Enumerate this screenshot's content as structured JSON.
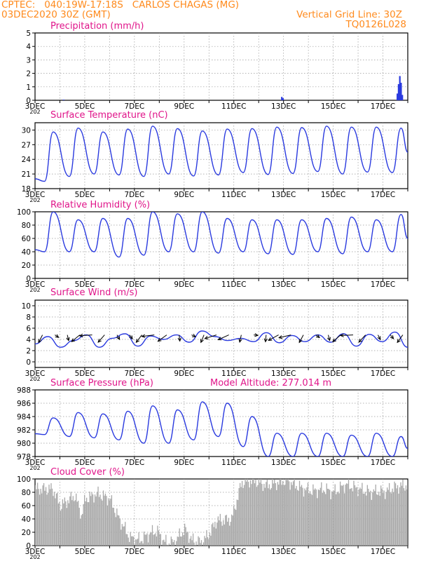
{
  "header": {
    "line1_left": "CPTEC:   040:19W-17:18S   CARLOS CHAGAS (MG)",
    "line2_left": "03DEC2020 30Z (GMT)",
    "line2_right": "Vertical Grid Line: 30Z",
    "line3_right": "TQ0126L028"
  },
  "colors": {
    "header": "#ff8a1c",
    "title": "#e0158a",
    "series": "#2a3adf",
    "cloud": "#a9a9a9"
  },
  "chart_data": [
    {
      "type": "bar",
      "title": "Precipitation (mm/h)",
      "x": [
        {
          "day": 4.12,
          "v": 0.05
        },
        {
          "day": 12.9,
          "v": 0.25
        },
        {
          "day": 12.95,
          "v": 0.15
        },
        {
          "day": 17.55,
          "v": 0.5
        },
        {
          "day": 17.6,
          "v": 1.2
        },
        {
          "day": 17.65,
          "v": 1.8
        },
        {
          "day": 17.7,
          "v": 1.3
        },
        {
          "day": 17.75,
          "v": 0.4
        }
      ],
      "ylim": [
        0,
        5
      ],
      "yticks": [
        "0",
        "1",
        "2",
        "3",
        "4",
        "5"
      ]
    },
    {
      "type": "line",
      "title": "Surface Temperature (nC)",
      "min": [
        19.5,
        20.5,
        21.0,
        20.8,
        20.5,
        21.0,
        20.6,
        20.8,
        21.3,
        20.9,
        21.1,
        21.5,
        21.0,
        21.4,
        21.3
      ],
      "max": [
        29.6,
        30.4,
        29.6,
        30.2,
        30.8,
        30.3,
        29.8,
        30.2,
        30.3,
        30.6,
        30.5,
        30.8,
        30.6,
        30.6,
        30.4,
        29.6
      ],
      "ylim": [
        18,
        31.5
      ],
      "yticks": [
        "18",
        "21",
        "24",
        "27",
        "30"
      ]
    },
    {
      "type": "line",
      "title": "Relative Humidity (%)",
      "min": [
        40,
        40,
        40,
        32,
        35,
        40,
        40,
        38,
        40,
        37,
        36,
        40,
        37,
        40,
        40
      ],
      "max": [
        100,
        88,
        90,
        90,
        100,
        97,
        100,
        90,
        88,
        88,
        88,
        90,
        92,
        88,
        96,
        80
      ],
      "ylim": [
        0,
        100
      ],
      "yticks": [
        "0",
        "20",
        "40",
        "60",
        "80",
        "100"
      ]
    },
    {
      "type": "line",
      "title": "Surface Wind (m/s)",
      "values": [
        3.2,
        4.5,
        2.6,
        3.8,
        4.8,
        2.6,
        4.2,
        5.0,
        2.8,
        4.6,
        4.0,
        4.8,
        3.5,
        5.5,
        4.5,
        3.8,
        4.2,
        3.6,
        5.2,
        3.4,
        4.7,
        3.6,
        4.8,
        3.5,
        5.0,
        2.8,
        4.9,
        3.6,
        5.3,
        2.6
      ],
      "ylim": [
        -1,
        11
      ],
      "yticks": [
        "0",
        "2",
        "4",
        "6",
        "8",
        "10"
      ]
    },
    {
      "type": "line",
      "title": "Surface Pressure (hPa)",
      "annotation": "Model Altitude: 277.014 m",
      "min": [
        981.3,
        981.0,
        980.8,
        980.5,
        980.0,
        980.0,
        980.5,
        981.0,
        979.5,
        978.0,
        978.0,
        978.0,
        978.0,
        978.0,
        978.0
      ],
      "max": [
        983.8,
        984.6,
        984.4,
        984.8,
        985.6,
        985.0,
        986.2,
        986.0,
        984.0,
        981.5,
        981.5,
        981.5,
        981.2,
        981.5,
        981.0,
        980.4
      ],
      "ylim": [
        978,
        988
      ],
      "yticks": [
        "978",
        "980",
        "982",
        "984",
        "986",
        "988"
      ]
    },
    {
      "type": "area",
      "title": "Cloud Cover (%)",
      "segments": [
        [
          3.0,
          85
        ],
        [
          3.7,
          85
        ],
        [
          4.0,
          60
        ],
        [
          4.6,
          75
        ],
        [
          4.85,
          45
        ],
        [
          5.0,
          70
        ],
        [
          5.5,
          78
        ],
        [
          6.0,
          70
        ],
        [
          6.3,
          45
        ],
        [
          6.6,
          25
        ],
        [
          6.8,
          12
        ],
        [
          7.2,
          8
        ],
        [
          7.6,
          18
        ],
        [
          7.9,
          22
        ],
        [
          8.2,
          5
        ],
        [
          8.6,
          5
        ],
        [
          9.0,
          25
        ],
        [
          9.3,
          8
        ],
        [
          9.7,
          5
        ],
        [
          10.0,
          18
        ],
        [
          10.3,
          38
        ],
        [
          10.6,
          38
        ],
        [
          10.9,
          40
        ],
        [
          11.3,
          95
        ],
        [
          11.8,
          98
        ],
        [
          12.3,
          90
        ],
        [
          12.8,
          95
        ],
        [
          13.1,
          98
        ],
        [
          13.5,
          90
        ],
        [
          13.8,
          85
        ],
        [
          14.2,
          82
        ],
        [
          14.6,
          85
        ],
        [
          15.0,
          80
        ],
        [
          15.5,
          92
        ],
        [
          16.0,
          85
        ],
        [
          16.5,
          80
        ],
        [
          16.8,
          82
        ],
        [
          17.0,
          80
        ],
        [
          17.5,
          88
        ],
        [
          17.8,
          90
        ],
        [
          18.0,
          90
        ]
      ],
      "ylim": [
        0,
        100
      ],
      "yticks": [
        "0",
        "20",
        "40",
        "60",
        "80",
        "100"
      ]
    }
  ],
  "xaxis": {
    "day_start": 3,
    "day_end": 18,
    "labels": [
      "3DEC",
      "5DEC",
      "7DEC",
      "9DEC",
      "11DEC",
      "13DEC",
      "15DEC",
      "17DEC"
    ],
    "year_stub": "202"
  }
}
